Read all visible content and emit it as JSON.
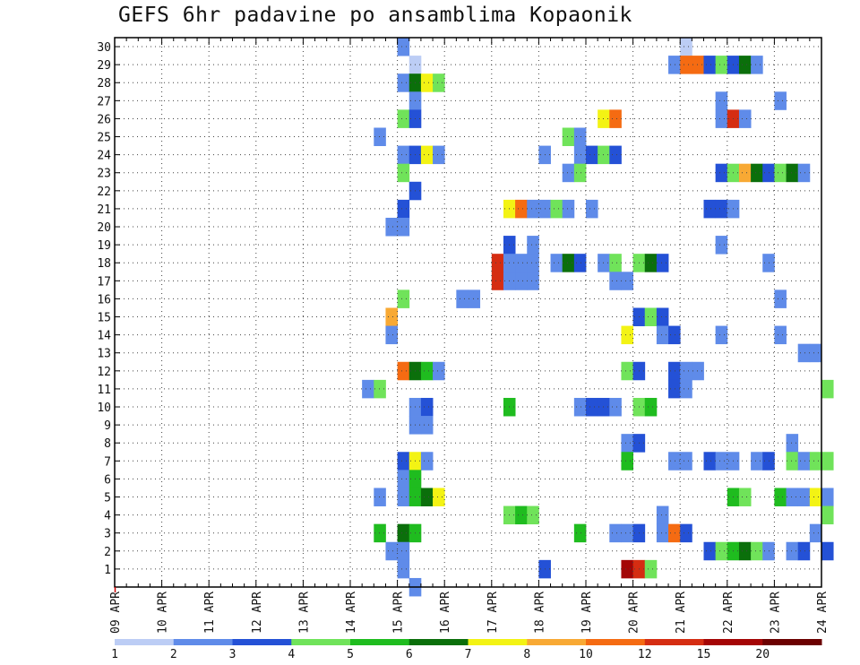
{
  "chart_data": {
    "type": "heatmap",
    "title": "GEFS 6hr padavine po ansamblima Kopaonik",
    "xlabel": "",
    "ylabel": "",
    "x_ticks": [
      "09 APR",
      "10 APR",
      "11 APR",
      "12 APR",
      "13 APR",
      "14 APR",
      "15 APR",
      "16 APR",
      "17 APR",
      "18 APR",
      "19 APR",
      "20 APR",
      "21 APR",
      "22 APR",
      "23 APR",
      "24 APR"
    ],
    "x_range": [
      "09 APR 00Z",
      "24 APR 00Z"
    ],
    "x_step": "6 hours",
    "y_ticks": [
      1,
      2,
      3,
      4,
      5,
      6,
      7,
      8,
      9,
      10,
      11,
      12,
      13,
      14,
      15,
      16,
      17,
      18,
      19,
      20,
      21,
      22,
      23,
      24,
      25,
      26,
      27,
      28,
      29,
      30
    ],
    "y_range": [
      0,
      30
    ],
    "grid": true,
    "colorbar": {
      "placement": "bottom",
      "levels": [
        1,
        2,
        3,
        4,
        5,
        6,
        7,
        8,
        10,
        12,
        15,
        20
      ],
      "colors": [
        "#bccdf5",
        "#5f8be9",
        "#2451d6",
        "#70e35a",
        "#1fbc1f",
        "#0b6f0b",
        "#f3f314",
        "#f8a934",
        "#f56b12",
        "#d52d12",
        "#a40505",
        "#6b0000"
      ]
    },
    "cells": [
      [
        30,
        24,
        1
      ],
      [
        30,
        48,
        0
      ],
      [
        29,
        25,
        0
      ],
      [
        29,
        47,
        1
      ],
      [
        29,
        48,
        8
      ],
      [
        29,
        49,
        8
      ],
      [
        29,
        50,
        2
      ],
      [
        29,
        51,
        3
      ],
      [
        29,
        52,
        2
      ],
      [
        29,
        53,
        5
      ],
      [
        29,
        54,
        1
      ],
      [
        28,
        24,
        1
      ],
      [
        28,
        25,
        5
      ],
      [
        28,
        26,
        6
      ],
      [
        28,
        27,
        3
      ],
      [
        27,
        25,
        1
      ],
      [
        27,
        51,
        1
      ],
      [
        27,
        56,
        1
      ],
      [
        26,
        24,
        3
      ],
      [
        26,
        25,
        2
      ],
      [
        26,
        41,
        6
      ],
      [
        26,
        42,
        8
      ],
      [
        26,
        51,
        1
      ],
      [
        26,
        52,
        9
      ],
      [
        26,
        53,
        1
      ],
      [
        25,
        22,
        1
      ],
      [
        25,
        38,
        3
      ],
      [
        25,
        39,
        1
      ],
      [
        24,
        24,
        1
      ],
      [
        24,
        25,
        2
      ],
      [
        24,
        26,
        6
      ],
      [
        24,
        27,
        1
      ],
      [
        24,
        36,
        1
      ],
      [
        24,
        39,
        1
      ],
      [
        24,
        40,
        2
      ],
      [
        24,
        41,
        3
      ],
      [
        24,
        42,
        2
      ],
      [
        23,
        24,
        3
      ],
      [
        23,
        38,
        1
      ],
      [
        23,
        39,
        3
      ],
      [
        23,
        51,
        2
      ],
      [
        23,
        52,
        3
      ],
      [
        23,
        53,
        7
      ],
      [
        23,
        54,
        5
      ],
      [
        23,
        55,
        2
      ],
      [
        23,
        56,
        3
      ],
      [
        23,
        57,
        5
      ],
      [
        23,
        58,
        1
      ],
      [
        22,
        25,
        2
      ],
      [
        21,
        24,
        2
      ],
      [
        21,
        33,
        6
      ],
      [
        21,
        34,
        8
      ],
      [
        21,
        35,
        1
      ],
      [
        21,
        36,
        1
      ],
      [
        21,
        37,
        3
      ],
      [
        21,
        38,
        1
      ],
      [
        21,
        40,
        1
      ],
      [
        21,
        50,
        2
      ],
      [
        21,
        51,
        2
      ],
      [
        21,
        52,
        1
      ],
      [
        20,
        23,
        1
      ],
      [
        20,
        24,
        1
      ],
      [
        19,
        33,
        2
      ],
      [
        19,
        35,
        1
      ],
      [
        19,
        51,
        1
      ],
      [
        18,
        32,
        9
      ],
      [
        18,
        33,
        1
      ],
      [
        18,
        34,
        1
      ],
      [
        18,
        35,
        1
      ],
      [
        18,
        37,
        1
      ],
      [
        18,
        38,
        5
      ],
      [
        18,
        39,
        2
      ],
      [
        18,
        41,
        1
      ],
      [
        18,
        42,
        3
      ],
      [
        18,
        44,
        3
      ],
      [
        18,
        45,
        5
      ],
      [
        18,
        46,
        2
      ],
      [
        18,
        55,
        1
      ],
      [
        17,
        32,
        9
      ],
      [
        17,
        33,
        1
      ],
      [
        17,
        34,
        1
      ],
      [
        17,
        35,
        1
      ],
      [
        17,
        42,
        1
      ],
      [
        17,
        43,
        1
      ],
      [
        16,
        24,
        3
      ],
      [
        16,
        29,
        1
      ],
      [
        16,
        30,
        1
      ],
      [
        16,
        56,
        1
      ],
      [
        15,
        23,
        7
      ],
      [
        15,
        44,
        2
      ],
      [
        15,
        45,
        3
      ],
      [
        15,
        46,
        2
      ],
      [
        14,
        23,
        1
      ],
      [
        14,
        43,
        6
      ],
      [
        14,
        46,
        1
      ],
      [
        14,
        47,
        2
      ],
      [
        14,
        51,
        1
      ],
      [
        14,
        56,
        1
      ],
      [
        13,
        58,
        1
      ],
      [
        13,
        59,
        1
      ],
      [
        12,
        24,
        8
      ],
      [
        12,
        25,
        5
      ],
      [
        12,
        26,
        4
      ],
      [
        12,
        27,
        1
      ],
      [
        12,
        43,
        3
      ],
      [
        12,
        44,
        2
      ],
      [
        12,
        47,
        2
      ],
      [
        12,
        48,
        1
      ],
      [
        12,
        49,
        1
      ],
      [
        11,
        21,
        1
      ],
      [
        11,
        22,
        3
      ],
      [
        11,
        47,
        2
      ],
      [
        11,
        48,
        1
      ],
      [
        11,
        60,
        3
      ],
      [
        10,
        25,
        1
      ],
      [
        10,
        26,
        2
      ],
      [
        10,
        33,
        4
      ],
      [
        10,
        39,
        1
      ],
      [
        10,
        40,
        2
      ],
      [
        10,
        41,
        2
      ],
      [
        10,
        42,
        1
      ],
      [
        10,
        44,
        3
      ],
      [
        10,
        45,
        4
      ],
      [
        9,
        25,
        1
      ],
      [
        9,
        26,
        1
      ],
      [
        8,
        43,
        1
      ],
      [
        8,
        44,
        2
      ],
      [
        8,
        57,
        1
      ],
      [
        7,
        24,
        2
      ],
      [
        7,
        25,
        6
      ],
      [
        7,
        26,
        1
      ],
      [
        7,
        43,
        4
      ],
      [
        7,
        47,
        1
      ],
      [
        7,
        48,
        1
      ],
      [
        7,
        50,
        2
      ],
      [
        7,
        51,
        1
      ],
      [
        7,
        52,
        1
      ],
      [
        7,
        54,
        1
      ],
      [
        7,
        55,
        2
      ],
      [
        7,
        57,
        3
      ],
      [
        7,
        58,
        1
      ],
      [
        7,
        59,
        3
      ],
      [
        7,
        60,
        3
      ],
      [
        6,
        24,
        1
      ],
      [
        6,
        25,
        4
      ],
      [
        5,
        22,
        1
      ],
      [
        5,
        24,
        1
      ],
      [
        5,
        25,
        4
      ],
      [
        5,
        26,
        5
      ],
      [
        5,
        27,
        6
      ],
      [
        5,
        52,
        4
      ],
      [
        5,
        53,
        3
      ],
      [
        5,
        56,
        4
      ],
      [
        5,
        57,
        1
      ],
      [
        5,
        58,
        1
      ],
      [
        5,
        59,
        6
      ],
      [
        5,
        60,
        1
      ],
      [
        4,
        33,
        3
      ],
      [
        4,
        34,
        4
      ],
      [
        4,
        35,
        3
      ],
      [
        4,
        46,
        1
      ],
      [
        4,
        60,
        3
      ],
      [
        3,
        22,
        4
      ],
      [
        3,
        24,
        5
      ],
      [
        3,
        25,
        4
      ],
      [
        3,
        39,
        4
      ],
      [
        3,
        42,
        1
      ],
      [
        3,
        43,
        1
      ],
      [
        3,
        44,
        2
      ],
      [
        3,
        46,
        1
      ],
      [
        3,
        47,
        8
      ],
      [
        3,
        48,
        2
      ],
      [
        3,
        59,
        1
      ],
      [
        2,
        23,
        1
      ],
      [
        2,
        24,
        1
      ],
      [
        2,
        50,
        2
      ],
      [
        2,
        51,
        3
      ],
      [
        2,
        52,
        4
      ],
      [
        2,
        53,
        5
      ],
      [
        2,
        54,
        3
      ],
      [
        2,
        55,
        1
      ],
      [
        2,
        57,
        1
      ],
      [
        2,
        58,
        2
      ],
      [
        2,
        60,
        2
      ],
      [
        1,
        24,
        1
      ],
      [
        1,
        36,
        2
      ],
      [
        1,
        43,
        10
      ],
      [
        1,
        44,
        9
      ],
      [
        1,
        45,
        3
      ],
      [
        0,
        25,
        1
      ]
    ]
  }
}
